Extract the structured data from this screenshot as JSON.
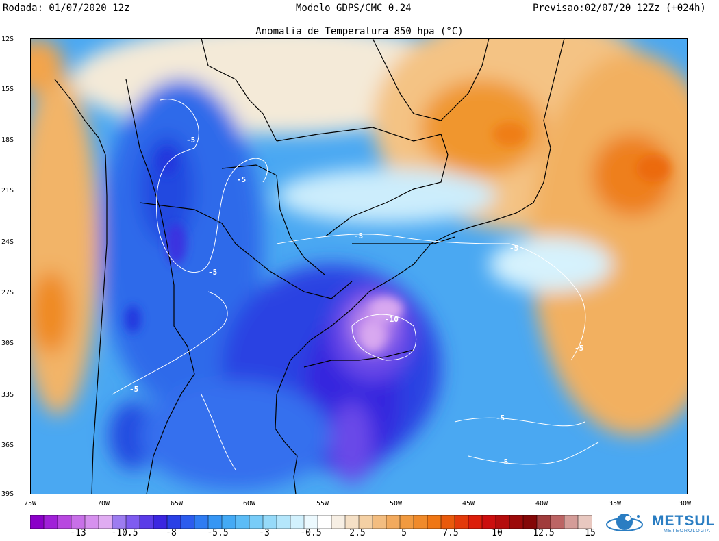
{
  "header": {
    "run": "Rodada: 01/07/2020 12z",
    "model": "Modelo GDPS/CMC 0.24",
    "forecast": "Previsao:02/07/20 12Zz (+024h)"
  },
  "subtitle": "Anomalia de Temperatura 850 hpa (°C)",
  "axes": {
    "lat_labels": [
      "12S",
      "15S",
      "18S",
      "21S",
      "24S",
      "27S",
      "30S",
      "33S",
      "36S",
      "39S"
    ],
    "lon_labels": [
      "75W",
      "70W",
      "65W",
      "60W",
      "55W",
      "50W",
      "45W",
      "40W",
      "35W",
      "30W"
    ]
  },
  "contours": {
    "labels": [
      "-5",
      "-5",
      "-5",
      "-5",
      "-5",
      "-10",
      "-5",
      "-5",
      "-5",
      "-5"
    ]
  },
  "colorbar": {
    "tick_labels": [
      "-13",
      "-10.5",
      "-8",
      "-5.5",
      "-3",
      "-0.5",
      "2.5",
      "5",
      "7.5",
      "10",
      "12.5",
      "15"
    ],
    "colors": [
      "#8a00c8",
      "#a020d8",
      "#b848e0",
      "#c870e8",
      "#d690ee",
      "#e0acf2",
      "#9d7cf0",
      "#7f5cf0",
      "#5a3ce8",
      "#3b26e0",
      "#2a40e6",
      "#2c5cee",
      "#2f7cf2",
      "#3696f4",
      "#44aaf5",
      "#5cbcf6",
      "#78ccf8",
      "#96daf9",
      "#b4e6fb",
      "#d2f1fd",
      "#ecf9fe",
      "#ffffff",
      "#f7efe4",
      "#f5e0c6",
      "#f4d0a4",
      "#f3bd80",
      "#f2aa5e",
      "#f19a40",
      "#f08a2a",
      "#ef7614",
      "#e95a0c",
      "#e33a0a",
      "#dc1e0a",
      "#cc0e0e",
      "#b50c0c",
      "#9c0a0a",
      "#840808",
      "#a03c3c",
      "#bc6464",
      "#d49c98",
      "#e8c8c0"
    ]
  },
  "logo": {
    "name": "METSUL",
    "sub": "METEOROLOGIA"
  }
}
